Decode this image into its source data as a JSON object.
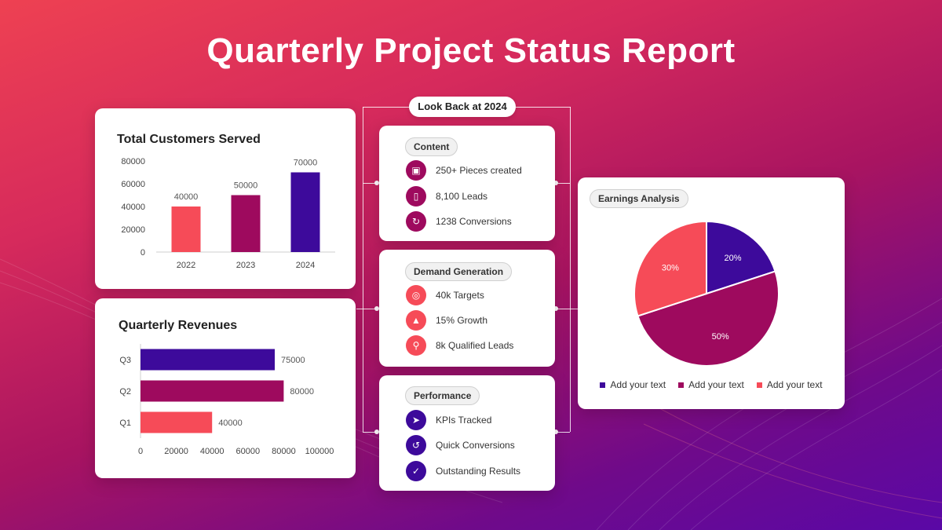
{
  "title": "Quarterly Project Status Report",
  "look_back": "Look Back at 2024",
  "colors": {
    "coral": "#f64b58",
    "magenta": "#9e0a5e",
    "indigo": "#3d0a9b"
  },
  "chart_data": [
    {
      "type": "bar",
      "title": "Total Customers Served",
      "categories": [
        "2022",
        "2023",
        "2024"
      ],
      "values": [
        40000,
        50000,
        70000
      ],
      "value_labels": [
        "40000",
        "50000",
        "70000"
      ],
      "ylim": [
        0,
        80000
      ],
      "yticks": [
        "0",
        "20000",
        "40000",
        "60000",
        "80000"
      ],
      "colors": [
        "#f64b58",
        "#9e0a5e",
        "#3d0a9b"
      ]
    },
    {
      "type": "bar",
      "orientation": "horizontal",
      "title": "Quarterly Revenues",
      "categories": [
        "Q1",
        "Q2",
        "Q3"
      ],
      "values": [
        40000,
        80000,
        75000
      ],
      "value_labels": [
        "40000",
        "80000",
        "75000"
      ],
      "xlim": [
        0,
        100000
      ],
      "xticks": [
        "0",
        "20000",
        "40000",
        "60000",
        "80000",
        "100000"
      ],
      "colors": [
        "#f64b58",
        "#9e0a5e",
        "#3d0a9b"
      ]
    },
    {
      "type": "pie",
      "title": "Earnings Analysis",
      "labels": [
        "Add your text",
        "Add your text",
        "Add your text"
      ],
      "values": [
        20,
        50,
        30
      ],
      "value_labels": [
        "20%",
        "50%",
        "30%"
      ],
      "colors": [
        "#3d0a9b",
        "#9e0a5e",
        "#f64b58"
      ]
    }
  ],
  "sections": [
    {
      "title": "Content",
      "items": [
        {
          "label": "250+ Pieces created",
          "icon": "image-icon"
        },
        {
          "label": "8,100 Leads",
          "icon": "phone-icon"
        },
        {
          "label": "1238 Conversions",
          "icon": "conversion-icon"
        }
      ],
      "color": "#9e0a5e"
    },
    {
      "title": "Demand Generation",
      "items": [
        {
          "label": "40k Targets",
          "icon": "target-icon"
        },
        {
          "label": "15% Growth",
          "icon": "growth-icon"
        },
        {
          "label": "8k Qualified Leads",
          "icon": "search-icon"
        }
      ],
      "color": "#f64b58"
    },
    {
      "title": "Performance",
      "items": [
        {
          "label": "KPIs Tracked",
          "icon": "runner-icon"
        },
        {
          "label": "Quick Conversions",
          "icon": "speed-icon"
        },
        {
          "label": "Outstanding Results",
          "icon": "check-badge-icon"
        }
      ],
      "color": "#3d0a9b"
    }
  ]
}
